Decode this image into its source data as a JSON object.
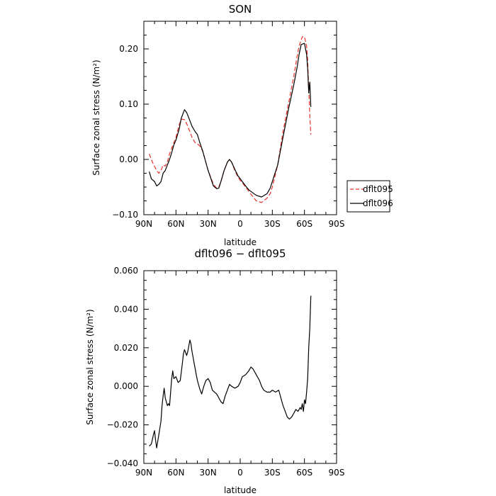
{
  "chart_data": [
    {
      "type": "line",
      "title": "SON",
      "xlabel": "latitude",
      "ylabel": "Surface zonal stress (N/m²)",
      "xlim": [
        90,
        -90
      ],
      "ylim": [
        -0.1,
        0.25
      ],
      "x_ticks": [
        90,
        60,
        30,
        0,
        -30,
        -60,
        -90
      ],
      "x_tick_labels": [
        "90N",
        "60N",
        "30N",
        "0",
        "30S",
        "60S",
        "90S"
      ],
      "y_ticks": [
        -0.1,
        0.0,
        0.1,
        0.2
      ],
      "y_tick_labels": [
        "−0.10",
        "0.00",
        "0.10",
        "0.20"
      ],
      "legend_position": "outside-right",
      "grid": false,
      "series": [
        {
          "name": "dflt095",
          "color": "#e8322a",
          "style": "dashed",
          "x": [
            85,
            82,
            78,
            76,
            74,
            72,
            70,
            68,
            66,
            64,
            60,
            57,
            55,
            52,
            50,
            48,
            45,
            42,
            40,
            38,
            35,
            30,
            25,
            22,
            20,
            18,
            15,
            12,
            10,
            8,
            5,
            2,
            0,
            -2,
            -5,
            -8,
            -10,
            -15,
            -20,
            -25,
            -28,
            -30,
            -35,
            -40,
            -45,
            -50,
            -53,
            -55,
            -58,
            -60,
            -62,
            -63,
            -64,
            -65,
            -66
          ],
          "values": [
            0.01,
            -0.005,
            -0.02,
            -0.025,
            -0.02,
            -0.01,
            -0.012,
            -0.005,
            0.01,
            0.02,
            0.04,
            0.063,
            0.073,
            0.072,
            0.065,
            0.055,
            0.04,
            0.03,
            0.028,
            0.025,
            0.015,
            -0.02,
            -0.045,
            -0.052,
            -0.05,
            -0.04,
            -0.02,
            -0.005,
            0.0,
            -0.005,
            -0.02,
            -0.032,
            -0.038,
            -0.042,
            -0.05,
            -0.058,
            -0.063,
            -0.075,
            -0.078,
            -0.07,
            -0.062,
            -0.05,
            -0.01,
            0.05,
            0.1,
            0.15,
            0.185,
            0.205,
            0.222,
            0.222,
            0.205,
            0.18,
            0.13,
            0.08,
            0.045
          ]
        },
        {
          "name": "dflt096",
          "color": "#000000",
          "style": "solid",
          "x": [
            85,
            83,
            80,
            78,
            76,
            74,
            72,
            70,
            68,
            66,
            64,
            62,
            60,
            57,
            55,
            53,
            52,
            50,
            48,
            45,
            42,
            40,
            38,
            35,
            30,
            25,
            22,
            20,
            18,
            15,
            12,
            10,
            8,
            5,
            2,
            0,
            -2,
            -5,
            -8,
            -10,
            -15,
            -20,
            -25,
            -28,
            -30,
            -35,
            -40,
            -45,
            -50,
            -53,
            -55,
            -57,
            -60,
            -62,
            -63,
            -64,
            -65,
            -66
          ],
          "values": [
            -0.022,
            -0.035,
            -0.04,
            -0.048,
            -0.045,
            -0.04,
            -0.025,
            -0.02,
            -0.01,
            0.0,
            0.012,
            0.026,
            0.035,
            0.055,
            0.075,
            0.085,
            0.09,
            0.085,
            0.075,
            0.06,
            0.05,
            0.045,
            0.032,
            0.015,
            -0.02,
            -0.048,
            -0.053,
            -0.052,
            -0.04,
            -0.02,
            -0.005,
            0.0,
            -0.005,
            -0.018,
            -0.03,
            -0.035,
            -0.04,
            -0.048,
            -0.055,
            -0.058,
            -0.065,
            -0.068,
            -0.062,
            -0.052,
            -0.04,
            -0.01,
            0.04,
            0.09,
            0.135,
            0.165,
            0.19,
            0.208,
            0.21,
            0.19,
            0.165,
            0.12,
            0.14,
            0.095
          ]
        }
      ]
    },
    {
      "type": "line",
      "title": "dflt096 − dflt095",
      "xlabel": "latitude",
      "ylabel": "Surface zonal stress (N/m²)",
      "xlim": [
        90,
        -90
      ],
      "ylim": [
        -0.04,
        0.06
      ],
      "x_ticks": [
        90,
        60,
        30,
        0,
        -30,
        -60,
        -90
      ],
      "x_tick_labels": [
        "90N",
        "60N",
        "30N",
        "0",
        "30S",
        "60S",
        "90S"
      ],
      "y_ticks": [
        -0.04,
        -0.02,
        0.0,
        0.02,
        0.04,
        0.06
      ],
      "y_tick_labels": [
        "−0.040",
        "−0.020",
        "0.000",
        "0.020",
        "0.040",
        "0.060"
      ],
      "grid": false,
      "series": [
        {
          "color": "#000000",
          "style": "solid",
          "x": [
            85,
            83,
            81,
            80,
            79,
            78,
            76,
            74,
            73,
            72,
            71,
            70,
            68,
            67,
            66,
            64,
            63,
            62,
            60,
            58,
            56,
            54,
            53,
            52,
            50,
            49,
            48,
            47,
            46,
            45,
            43,
            41,
            40,
            38,
            36,
            34,
            32,
            30,
            28,
            26,
            24,
            22,
            20,
            18,
            16,
            14,
            12,
            10,
            8,
            5,
            2,
            0,
            -2,
            -5,
            -8,
            -10,
            -12,
            -15,
            -18,
            -20,
            -22,
            -25,
            -28,
            -30,
            -33,
            -36,
            -38,
            -40,
            -42,
            -44,
            -46,
            -48,
            -50,
            -52,
            -54,
            -56,
            -57,
            -58,
            -59,
            -60,
            -61,
            -62,
            -63,
            -64,
            -65,
            -66
          ],
          "values": [
            -0.031,
            -0.03,
            -0.025,
            -0.023,
            -0.028,
            -0.032,
            -0.025,
            -0.018,
            -0.01,
            -0.005,
            -0.001,
            -0.006,
            -0.01,
            -0.009,
            -0.01,
            0.004,
            0.008,
            0.004,
            0.005,
            0.002,
            0.003,
            0.012,
            0.017,
            0.019,
            0.016,
            0.018,
            0.021,
            0.024,
            0.022,
            0.018,
            0.012,
            0.006,
            0.003,
            -0.001,
            -0.004,
            0.0,
            0.003,
            0.004,
            0.002,
            -0.002,
            -0.003,
            -0.004,
            -0.006,
            -0.008,
            -0.009,
            -0.005,
            -0.002,
            0.001,
            0.0,
            -0.001,
            0.0,
            0.002,
            0.005,
            0.006,
            0.008,
            0.01,
            0.009,
            0.006,
            0.003,
            0.0,
            -0.002,
            -0.003,
            -0.003,
            -0.002,
            -0.003,
            -0.002,
            -0.006,
            -0.01,
            -0.013,
            -0.016,
            -0.017,
            -0.016,
            -0.014,
            -0.012,
            -0.013,
            -0.011,
            -0.012,
            -0.009,
            -0.013,
            -0.007,
            -0.009,
            -0.003,
            0.004,
            0.02,
            0.03,
            0.047
          ]
        }
      ]
    }
  ]
}
